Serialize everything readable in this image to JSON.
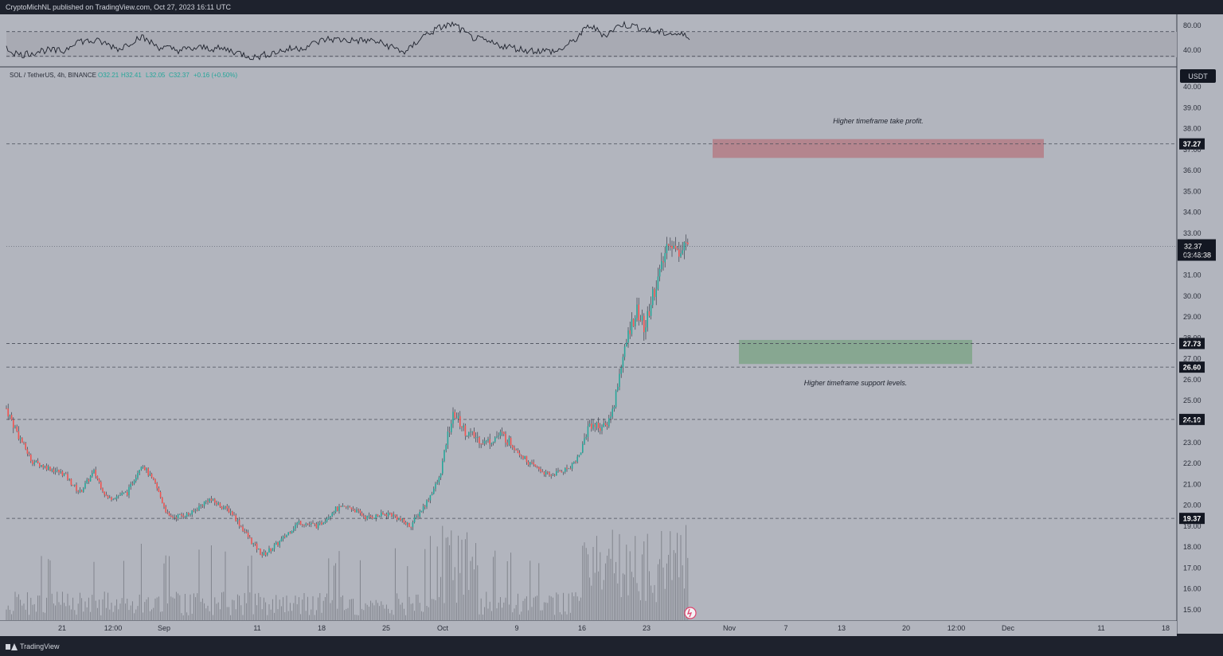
{
  "header": {
    "published_text": "CryptoMichNL published on TradingView.com, Oct 27, 2023 16:11 UTC"
  },
  "footer": {
    "brand": "TradingView"
  },
  "symbol": {
    "name": "SOL / TetherUS, 4h, BINANCE",
    "open": "O32.21",
    "high": "H32.41",
    "low": "L32.05",
    "close": "C32.37",
    "change": "+0.16 (+0.50%)"
  },
  "currency": "USDT",
  "colors": {
    "up": "#26a69a",
    "down": "#ef5350",
    "background": "#b2b5be",
    "panel": "#1e222d"
  },
  "rsi": {
    "type": "line",
    "ticks": [
      "80.00",
      "40.00"
    ],
    "upper": 70,
    "lower": 30,
    "approx_path": [
      [
        0,
        48
      ],
      [
        25,
        32
      ],
      [
        55,
        40
      ],
      [
        80,
        38
      ],
      [
        95,
        55
      ],
      [
        125,
        54
      ],
      [
        150,
        42
      ],
      [
        176,
        62
      ],
      [
        200,
        45
      ],
      [
        225,
        40
      ],
      [
        255,
        44
      ],
      [
        285,
        41
      ],
      [
        320,
        28
      ],
      [
        340,
        35
      ],
      [
        365,
        42
      ],
      [
        380,
        44
      ],
      [
        410,
        58
      ],
      [
        440,
        56
      ],
      [
        470,
        55
      ],
      [
        490,
        46
      ],
      [
        510,
        36
      ],
      [
        530,
        62
      ],
      [
        555,
        78
      ],
      [
        570,
        82
      ],
      [
        590,
        62
      ],
      [
        620,
        50
      ],
      [
        660,
        40
      ],
      [
        700,
        38
      ],
      [
        720,
        54
      ],
      [
        740,
        80
      ],
      [
        760,
        64
      ],
      [
        780,
        82
      ],
      [
        800,
        78
      ],
      [
        820,
        70
      ],
      [
        850,
        66
      ],
      [
        865,
        62
      ]
    ]
  },
  "chart_data": {
    "type": "candlestick",
    "symbol": "SOL / TetherUS",
    "interval": "4h",
    "exchange": "BINANCE",
    "y_axis_ticks": [
      "40.00",
      "39.00",
      "38.00",
      "37.00",
      "36.00",
      "35.00",
      "34.00",
      "33.00",
      "32.00",
      "31.00",
      "30.00",
      "29.00",
      "28.00",
      "27.00",
      "26.00",
      "25.00",
      "24.00",
      "23.00",
      "22.00",
      "21.00",
      "20.00",
      "19.00",
      "18.00",
      "17.00",
      "16.00",
      "15.00"
    ],
    "ylim": [
      14.6,
      40.4
    ],
    "x_axis_ticks": [
      "21",
      "12:00",
      "Sep",
      "11",
      "18",
      "25",
      "Oct",
      "9",
      "16",
      "23",
      "Nov",
      "7",
      "13",
      "20",
      "12:00",
      "Dec",
      "11",
      "18"
    ],
    "price_anchors": [
      [
        0,
        25.3
      ],
      [
        20,
        23.6
      ],
      [
        40,
        22.1
      ],
      [
        60,
        21.8
      ],
      [
        80,
        21.5
      ],
      [
        100,
        20.6
      ],
      [
        118,
        21.6
      ],
      [
        135,
        20.3
      ],
      [
        160,
        20.6
      ],
      [
        178,
        22.0
      ],
      [
        195,
        21.0
      ],
      [
        212,
        19.4
      ],
      [
        240,
        19.6
      ],
      [
        262,
        20.3
      ],
      [
        290,
        19.7
      ],
      [
        315,
        18.3
      ],
      [
        330,
        17.6
      ],
      [
        350,
        18.2
      ],
      [
        375,
        19.2
      ],
      [
        400,
        19.0
      ],
      [
        420,
        19.8
      ],
      [
        440,
        19.9
      ],
      [
        460,
        19.4
      ],
      [
        490,
        19.6
      ],
      [
        515,
        19.0
      ],
      [
        535,
        20.1
      ],
      [
        552,
        21.3
      ],
      [
        562,
        23.3
      ],
      [
        570,
        24.4
      ],
      [
        585,
        23.5
      ],
      [
        610,
        23.0
      ],
      [
        630,
        23.4
      ],
      [
        650,
        22.6
      ],
      [
        665,
        22.0
      ],
      [
        690,
        21.4
      ],
      [
        715,
        21.8
      ],
      [
        728,
        22.4
      ],
      [
        740,
        23.9
      ],
      [
        760,
        23.7
      ],
      [
        770,
        24.6
      ],
      [
        780,
        26.7
      ],
      [
        792,
        28.6
      ],
      [
        800,
        29.3
      ],
      [
        810,
        28.4
      ],
      [
        820,
        30.1
      ],
      [
        830,
        31.2
      ],
      [
        840,
        32.8
      ],
      [
        850,
        32.0
      ],
      [
        860,
        32.6
      ],
      [
        866,
        32.37
      ]
    ],
    "last_price": "32.37",
    "countdown": "03:48:38",
    "levels": [
      {
        "price": 37.27,
        "label": "37.27"
      },
      {
        "price": 27.73,
        "label": "27.73"
      },
      {
        "price": 26.6,
        "label": "26.60"
      },
      {
        "price": 24.1,
        "label": "24.10"
      },
      {
        "price": 19.37,
        "label": "19.37"
      }
    ],
    "zones": [
      {
        "name": "take-profit",
        "from_price": 36.6,
        "to_price": 37.5,
        "color": "#b47c86",
        "label": "Higher timeframe take profit."
      },
      {
        "name": "support",
        "from_price": 26.75,
        "to_price": 27.9,
        "color": "#7fa58a",
        "label": "Higher timeframe support levels."
      }
    ]
  }
}
